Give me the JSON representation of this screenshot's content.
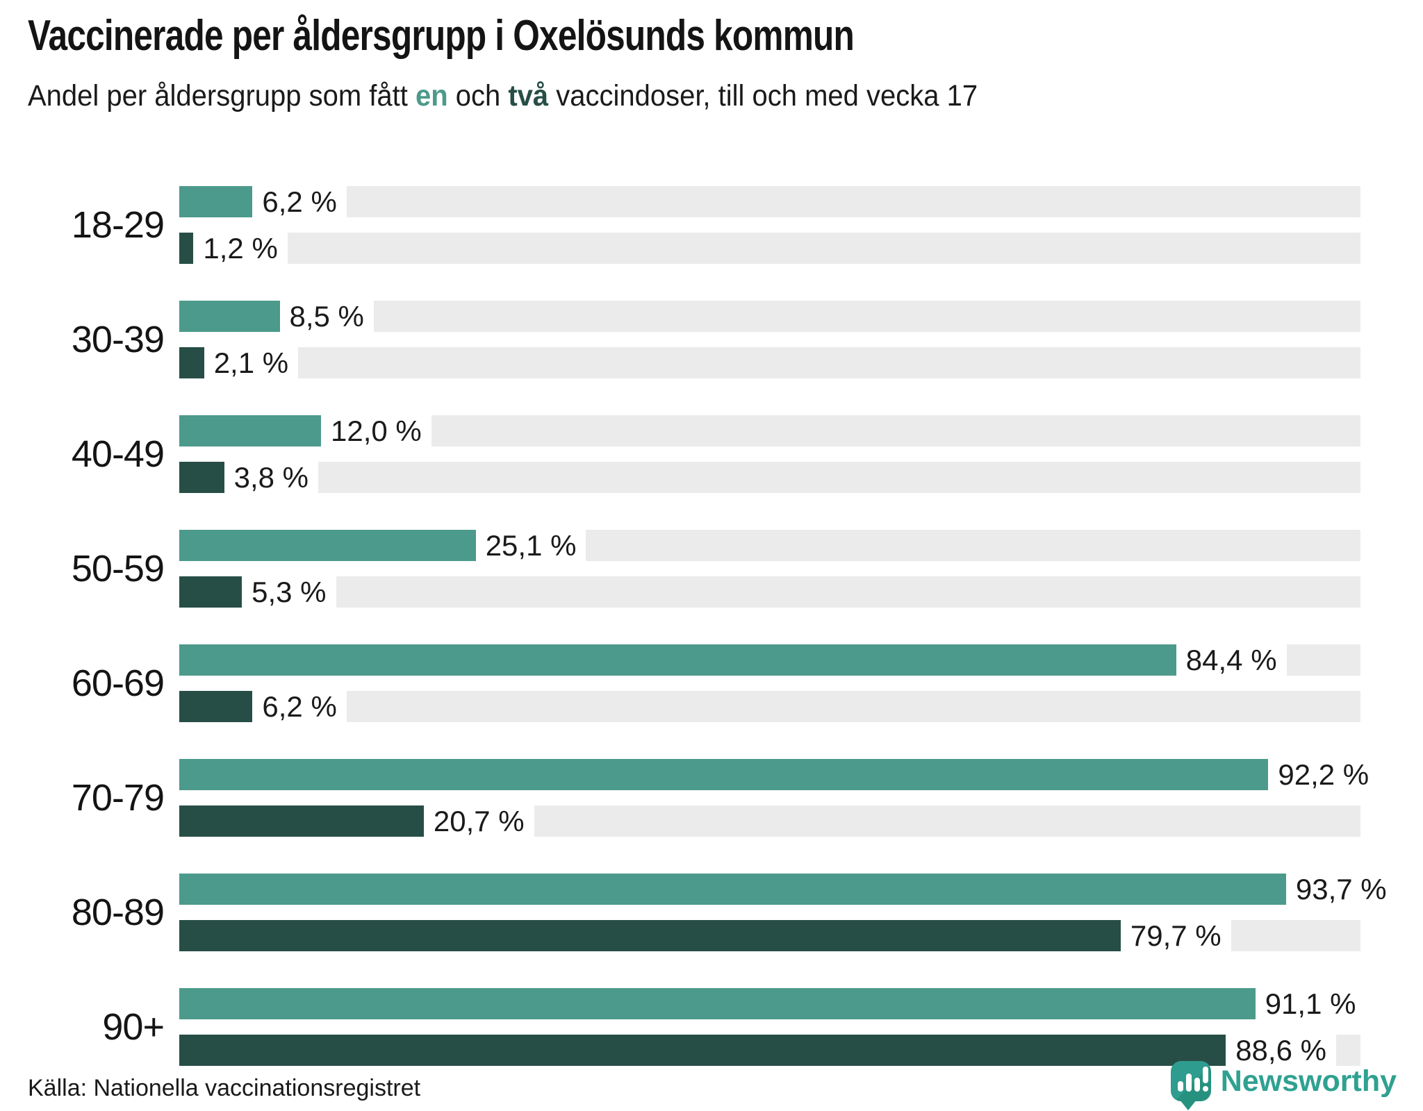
{
  "title": "Vaccinerade per åldersgrupp i Oxelösunds kommun",
  "subtitle": {
    "prefix": "Andel per åldersgrupp som fått ",
    "one_word": "en",
    "middle": " och ",
    "two_word": "två",
    "suffix": " vaccindoser, till och med vecka 17"
  },
  "source": "Källa: Nationella vaccinationsregistret",
  "logo": {
    "text": "Newsworthy"
  },
  "colors": {
    "one_dose": "#4c9a8b",
    "two_doses": "#274e46",
    "track": "#ebebeb",
    "logo_bubble": "#2e9c8e",
    "logo_bubble_dark": "#27917f",
    "logo_text": "#2fa191"
  },
  "chart_data": {
    "type": "bar",
    "orientation": "horizontal",
    "title": "Vaccinerade per åldersgrupp i Oxelösunds kommun",
    "subtitle": "Andel per åldersgrupp som fått en och två vaccindoser, till och med vecka 17",
    "categories": [
      "18-29",
      "30-39",
      "40-49",
      "50-59",
      "60-69",
      "70-79",
      "80-89",
      "90+"
    ],
    "series": [
      {
        "name": "en dos",
        "color": "#4c9a8b",
        "values": [
          6.2,
          8.5,
          12.0,
          25.1,
          84.4,
          92.2,
          93.7,
          91.1
        ],
        "labels": [
          "6,2 %",
          "8,5 %",
          "12,0 %",
          "25,1 %",
          "84,4 %",
          "92,2 %",
          "93,7 %",
          "91,1 %"
        ]
      },
      {
        "name": "två doser",
        "color": "#274e46",
        "values": [
          1.2,
          2.1,
          3.8,
          5.3,
          6.2,
          20.7,
          79.7,
          88.6
        ],
        "labels": [
          "1,2 %",
          "2,1 %",
          "3,8 %",
          "5,3 %",
          "6,2 %",
          "20,7 %",
          "79,7 %",
          "88,6 %"
        ]
      }
    ],
    "xlim": [
      0,
      100
    ],
    "grid": false,
    "legend": "inline-in-subtitle",
    "track_color": "#ebebeb"
  }
}
